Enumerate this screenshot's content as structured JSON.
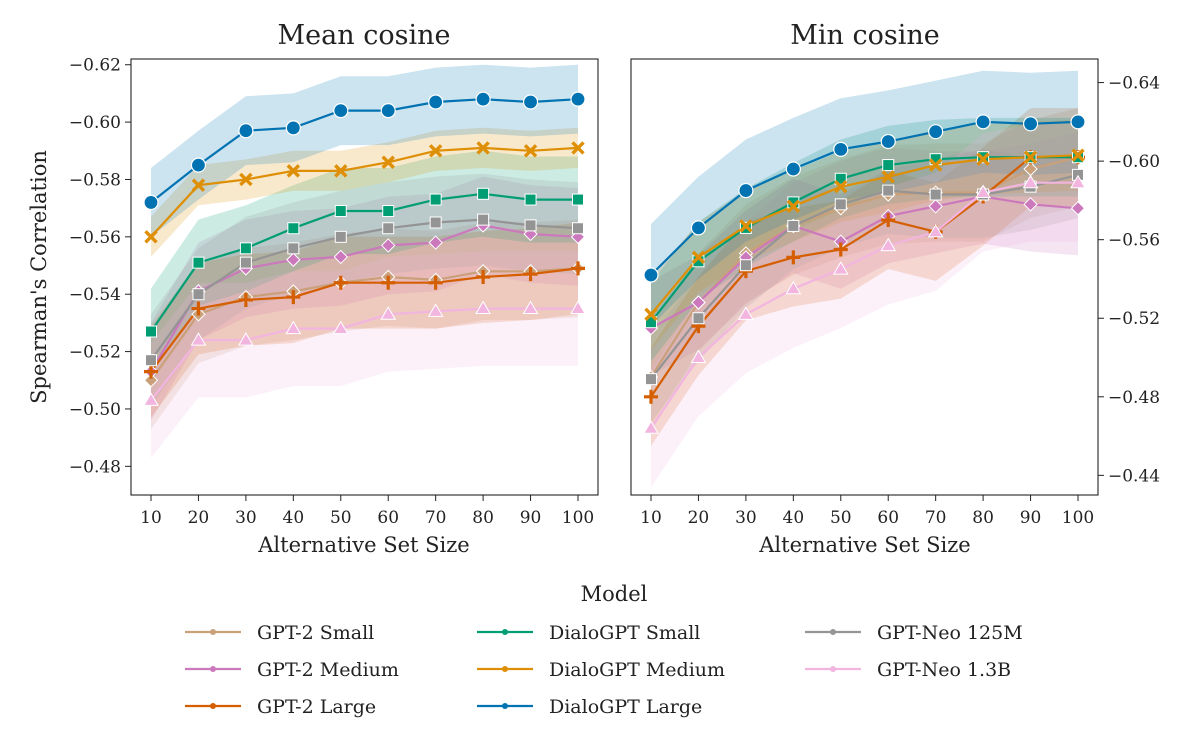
{
  "colors": {
    "gpt2_small": "#c9a07a",
    "gpt2_medium": "#cc78bc",
    "gpt2_large": "#d55e00",
    "dialo_small": "#029e73",
    "dialo_medium": "#de8f05",
    "dialo_large": "#0173b2",
    "neo_125m": "#949494",
    "neo_13b": "#f2b5e0"
  },
  "legend": {
    "title": "Model",
    "entries": [
      {
        "label": "GPT-2 Small",
        "color_key": "gpt2_small",
        "marker": "diamond"
      },
      {
        "label": "GPT-2 Medium",
        "color_key": "gpt2_medium",
        "marker": "diamond"
      },
      {
        "label": "GPT-2 Large",
        "color_key": "gpt2_large",
        "marker": "plus"
      },
      {
        "label": "DialoGPT Small",
        "color_key": "dialo_small",
        "marker": "square"
      },
      {
        "label": "DialoGPT Medium",
        "color_key": "dialo_medium",
        "marker": "x"
      },
      {
        "label": "DialoGPT Large",
        "color_key": "dialo_large",
        "marker": "circle"
      },
      {
        "label": "GPT-Neo 125M",
        "color_key": "neo_125m",
        "marker": "square"
      },
      {
        "label": "GPT-Neo 1.3B",
        "color_key": "neo_13b",
        "marker": "triangle"
      }
    ]
  },
  "chart_data": [
    {
      "type": "line",
      "title": "Mean cosine",
      "xlabel": "Alternative Set Size",
      "ylabel": "Spearman's Correlation",
      "x": [
        10,
        20,
        30,
        40,
        50,
        60,
        70,
        80,
        90,
        100
      ],
      "x_tick_labels": [
        "10",
        "20",
        "30",
        "40",
        "50",
        "60",
        "70",
        "80",
        "90",
        "100"
      ],
      "y_axis_inverted": true,
      "ylim": [
        -0.47,
        -0.622
      ],
      "y_ticks": [
        -0.48,
        -0.5,
        -0.52,
        -0.54,
        -0.56,
        -0.58,
        -0.6,
        -0.62
      ],
      "y_tick_labels": [
        "−0.48",
        "−0.50",
        "−0.52",
        "−0.54",
        "−0.56",
        "−0.58",
        "−0.60",
        "−0.62"
      ],
      "y_axis_side": "left",
      "series": [
        {
          "name": "GPT-2 Small",
          "color_key": "gpt2_small",
          "marker": "diamond",
          "values": [
            -0.51,
            -0.533,
            -0.539,
            -0.541,
            -0.544,
            -0.546,
            -0.545,
            -0.548,
            -0.548,
            -0.549
          ],
          "band": 0.017
        },
        {
          "name": "GPT-2 Medium",
          "color_key": "gpt2_medium",
          "marker": "diamond",
          "values": [
            -0.513,
            -0.541,
            -0.549,
            -0.552,
            -0.553,
            -0.557,
            -0.558,
            -0.564,
            -0.561,
            -0.56
          ],
          "band": 0.017
        },
        {
          "name": "GPT-2 Large",
          "color_key": "gpt2_large",
          "marker": "plus",
          "values": [
            -0.513,
            -0.535,
            -0.538,
            -0.539,
            -0.544,
            -0.544,
            -0.544,
            -0.546,
            -0.547,
            -0.549
          ],
          "band": 0.016
        },
        {
          "name": "DialoGPT Small",
          "color_key": "dialo_small",
          "marker": "square",
          "values": [
            -0.527,
            -0.551,
            -0.556,
            -0.563,
            -0.569,
            -0.569,
            -0.573,
            -0.575,
            -0.573,
            -0.573
          ],
          "band": 0.015
        },
        {
          "name": "DialoGPT Medium",
          "color_key": "dialo_medium",
          "marker": "x",
          "values": [
            -0.56,
            -0.578,
            -0.58,
            -0.583,
            -0.583,
            -0.586,
            -0.59,
            -0.591,
            -0.59,
            -0.591
          ],
          "band": 0.007
        },
        {
          "name": "DialoGPT Large",
          "color_key": "dialo_large",
          "marker": "circle",
          "values": [
            -0.572,
            -0.585,
            -0.597,
            -0.598,
            -0.604,
            -0.604,
            -0.607,
            -0.608,
            -0.607,
            -0.608
          ],
          "band": 0.012
        },
        {
          "name": "GPT-Neo 125M",
          "color_key": "neo_125m",
          "marker": "square",
          "values": [
            -0.517,
            -0.54,
            -0.551,
            -0.556,
            -0.56,
            -0.563,
            -0.565,
            -0.566,
            -0.564,
            -0.563
          ],
          "band": 0.016
        },
        {
          "name": "GPT-Neo 1.3B",
          "color_key": "neo_13b",
          "marker": "triangle",
          "values": [
            -0.503,
            -0.524,
            -0.524,
            -0.528,
            -0.528,
            -0.533,
            -0.534,
            -0.535,
            -0.535,
            -0.535
          ],
          "band": 0.02
        }
      ]
    },
    {
      "type": "line",
      "title": "Min cosine",
      "xlabel": "Alternative Set Size",
      "ylabel": "",
      "x": [
        10,
        20,
        30,
        40,
        50,
        60,
        70,
        80,
        90,
        100
      ],
      "x_tick_labels": [
        "10",
        "20",
        "30",
        "40",
        "50",
        "60",
        "70",
        "80",
        "90",
        "100"
      ],
      "y_axis_inverted": true,
      "ylim": [
        -0.43,
        -0.652
      ],
      "y_ticks": [
        -0.44,
        -0.48,
        -0.52,
        -0.56,
        -0.6,
        -0.64
      ],
      "y_tick_labels": [
        "−0.44",
        "−0.48",
        "−0.52",
        "−0.56",
        "−0.60",
        "−0.64"
      ],
      "y_axis_side": "right",
      "series": [
        {
          "name": "GPT-2 Small",
          "color_key": "gpt2_small",
          "marker": "diamond",
          "values": [
            -0.49,
            -0.528,
            -0.553,
            -0.567,
            -0.576,
            -0.583,
            -0.584,
            -0.584,
            -0.596,
            -0.602
          ],
          "band": 0.025
        },
        {
          "name": "GPT-2 Medium",
          "color_key": "gpt2_medium",
          "marker": "diamond",
          "values": [
            -0.515,
            -0.528,
            -0.551,
            -0.567,
            -0.559,
            -0.572,
            -0.577,
            -0.582,
            -0.578,
            -0.576
          ],
          "band": 0.024
        },
        {
          "name": "GPT-2 Large",
          "color_key": "gpt2_large",
          "marker": "plus",
          "values": [
            -0.48,
            -0.516,
            -0.544,
            -0.551,
            -0.555,
            -0.57,
            -0.564,
            -0.582,
            -0.602,
            -0.602
          ],
          "band": 0.025
        },
        {
          "name": "DialoGPT Small",
          "color_key": "dialo_small",
          "marker": "square",
          "values": [
            -0.518,
            -0.549,
            -0.566,
            -0.579,
            -0.591,
            -0.598,
            -0.601,
            -0.602,
            -0.602,
            -0.602
          ],
          "band": 0.02
        },
        {
          "name": "DialoGPT Medium",
          "color_key": "dialo_medium",
          "marker": "x",
          "values": [
            -0.522,
            -0.551,
            -0.567,
            -0.577,
            -0.587,
            -0.592,
            -0.598,
            -0.601,
            -0.602,
            -0.603
          ],
          "band": 0.018
        },
        {
          "name": "DialoGPT Large",
          "color_key": "dialo_large",
          "marker": "circle",
          "values": [
            -0.542,
            -0.566,
            -0.585,
            -0.596,
            -0.606,
            -0.61,
            -0.615,
            -0.62,
            -0.619,
            -0.62
          ],
          "band": 0.026
        },
        {
          "name": "GPT-Neo 125M",
          "color_key": "neo_125m",
          "marker": "square",
          "values": [
            -0.489,
            -0.52,
            -0.547,
            -0.567,
            -0.578,
            -0.585,
            -0.583,
            -0.583,
            -0.587,
            -0.593
          ],
          "band": 0.022
        },
        {
          "name": "GPT-Neo 1.3B",
          "color_key": "neo_13b",
          "marker": "triangle",
          "values": [
            -0.464,
            -0.5,
            -0.522,
            -0.535,
            -0.545,
            -0.557,
            -0.564,
            -0.584,
            -0.589,
            -0.589
          ],
          "band": 0.03
        }
      ]
    }
  ]
}
